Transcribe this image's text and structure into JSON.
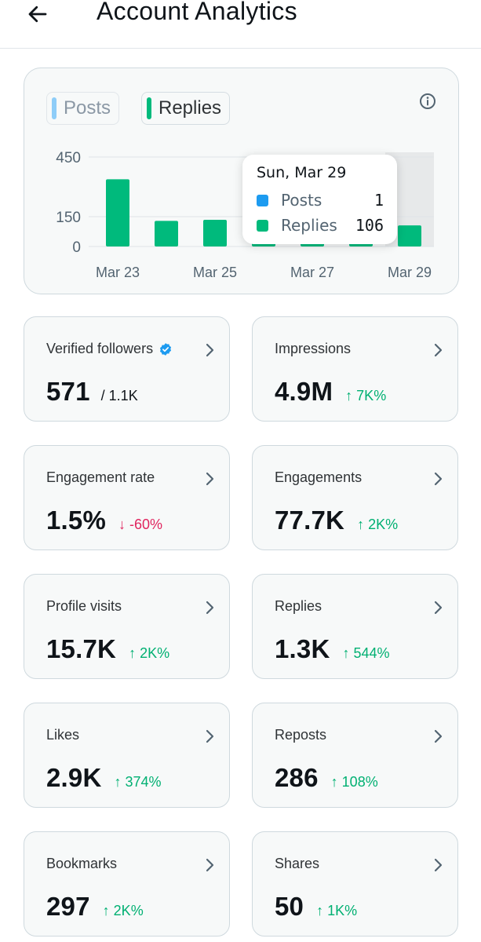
{
  "header": {
    "title": "Account Analytics",
    "back_icon": "arrow-left-icon"
  },
  "chart": {
    "legend": [
      {
        "label": "Posts",
        "color": "#8ecdf8"
      },
      {
        "label": "Replies",
        "color": "#00ba7c"
      }
    ],
    "info_icon": "info-icon",
    "tooltip": {
      "date": "Sun, Mar 29",
      "rows": [
        {
          "label": "Posts",
          "value": "1",
          "color": "#1d9bf0"
        },
        {
          "label": "Replies",
          "value": "106",
          "color": "#00ba7c"
        }
      ]
    }
  },
  "chart_data": {
    "type": "bar",
    "categories": [
      "Mar 23",
      "Mar 24",
      "Mar 25",
      "Mar 26",
      "Mar 27",
      "Mar 28",
      "Mar 29"
    ],
    "x_tick_labels": [
      "Mar 23",
      "Mar 25",
      "Mar 27",
      "Mar 29"
    ],
    "y_tick_labels": [
      "450",
      "150",
      "0"
    ],
    "y_ticks": [
      450,
      150,
      0
    ],
    "series": [
      {
        "name": "Replies",
        "color": "#00ba7c",
        "values": [
          338,
          129,
          134,
          106,
          106,
          106,
          106
        ]
      }
    ],
    "ylim": [
      0,
      450
    ],
    "highlighted_category": "Mar 29",
    "grid": true
  },
  "stats": [
    {
      "label": "Verified followers",
      "value": "571",
      "total": "/ 1.1K",
      "verified": true
    },
    {
      "label": "Impressions",
      "value": "4.9M",
      "change": "↑ 7K%",
      "direction": "up"
    },
    {
      "label": "Engagement rate",
      "value": "1.5%",
      "change": "↓ -60%",
      "direction": "down"
    },
    {
      "label": "Engagements",
      "value": "77.7K",
      "change": "↑ 2K%",
      "direction": "up"
    },
    {
      "label": "Profile visits",
      "value": "15.7K",
      "change": "↑ 2K%",
      "direction": "up"
    },
    {
      "label": "Replies",
      "value": "1.3K",
      "change": "↑ 544%",
      "direction": "up"
    },
    {
      "label": "Likes",
      "value": "2.9K",
      "change": "↑ 374%",
      "direction": "up"
    },
    {
      "label": "Reposts",
      "value": "286",
      "change": "↑ 108%",
      "direction": "up"
    },
    {
      "label": "Bookmarks",
      "value": "297",
      "change": "↑ 2K%",
      "direction": "up"
    },
    {
      "label": "Shares",
      "value": "50",
      "change": "↑ 1K%",
      "direction": "up"
    }
  ]
}
